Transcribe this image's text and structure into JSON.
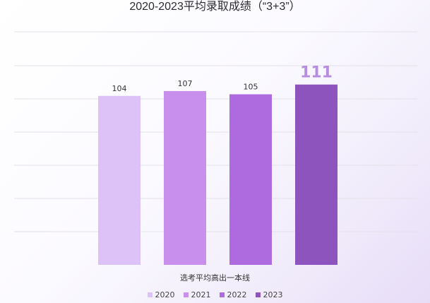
{
  "chart_data": {
    "type": "bar",
    "title": "2020-2023平均录取成绩（“3+3”）",
    "xlabel": "选考平均高出一本线",
    "ylabel": "",
    "categories": [
      "2020",
      "2021",
      "2022",
      "2023"
    ],
    "values": [
      104,
      107,
      105,
      111
    ],
    "ylim": [
      0,
      150
    ],
    "grid": true,
    "legend_position": "bottom",
    "colors": [
      "#dcc2f6",
      "#c890ec",
      "#ae6bdf",
      "#8d54bd"
    ],
    "highlight_index": 3,
    "highlight_color": "#b78de0",
    "label_color": "#333333"
  }
}
